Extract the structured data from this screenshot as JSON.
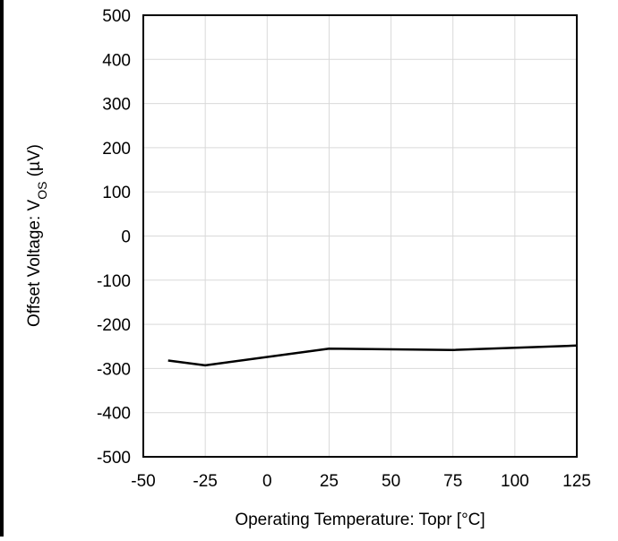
{
  "chart_data": {
    "type": "line",
    "title": "",
    "xlabel": "Operating Temperature: Topr [°C]",
    "ylabel": {
      "prefix": "Offset Voltage: V",
      "subscript": "OS",
      "suffix": " (µV)"
    },
    "xlim": [
      -50,
      125
    ],
    "ylim": [
      -500,
      500
    ],
    "xticks": [
      -50,
      -25,
      0,
      25,
      50,
      75,
      100,
      125
    ],
    "yticks": [
      500,
      400,
      300,
      200,
      100,
      0,
      -100,
      -200,
      -300,
      -400,
      -500
    ],
    "grid": true,
    "series": [
      {
        "x": [
          -40,
          -25,
          25,
          75,
          125
        ],
        "y": [
          -282,
          -293,
          -255,
          -258,
          -248
        ],
        "color": "#000000"
      }
    ]
  }
}
